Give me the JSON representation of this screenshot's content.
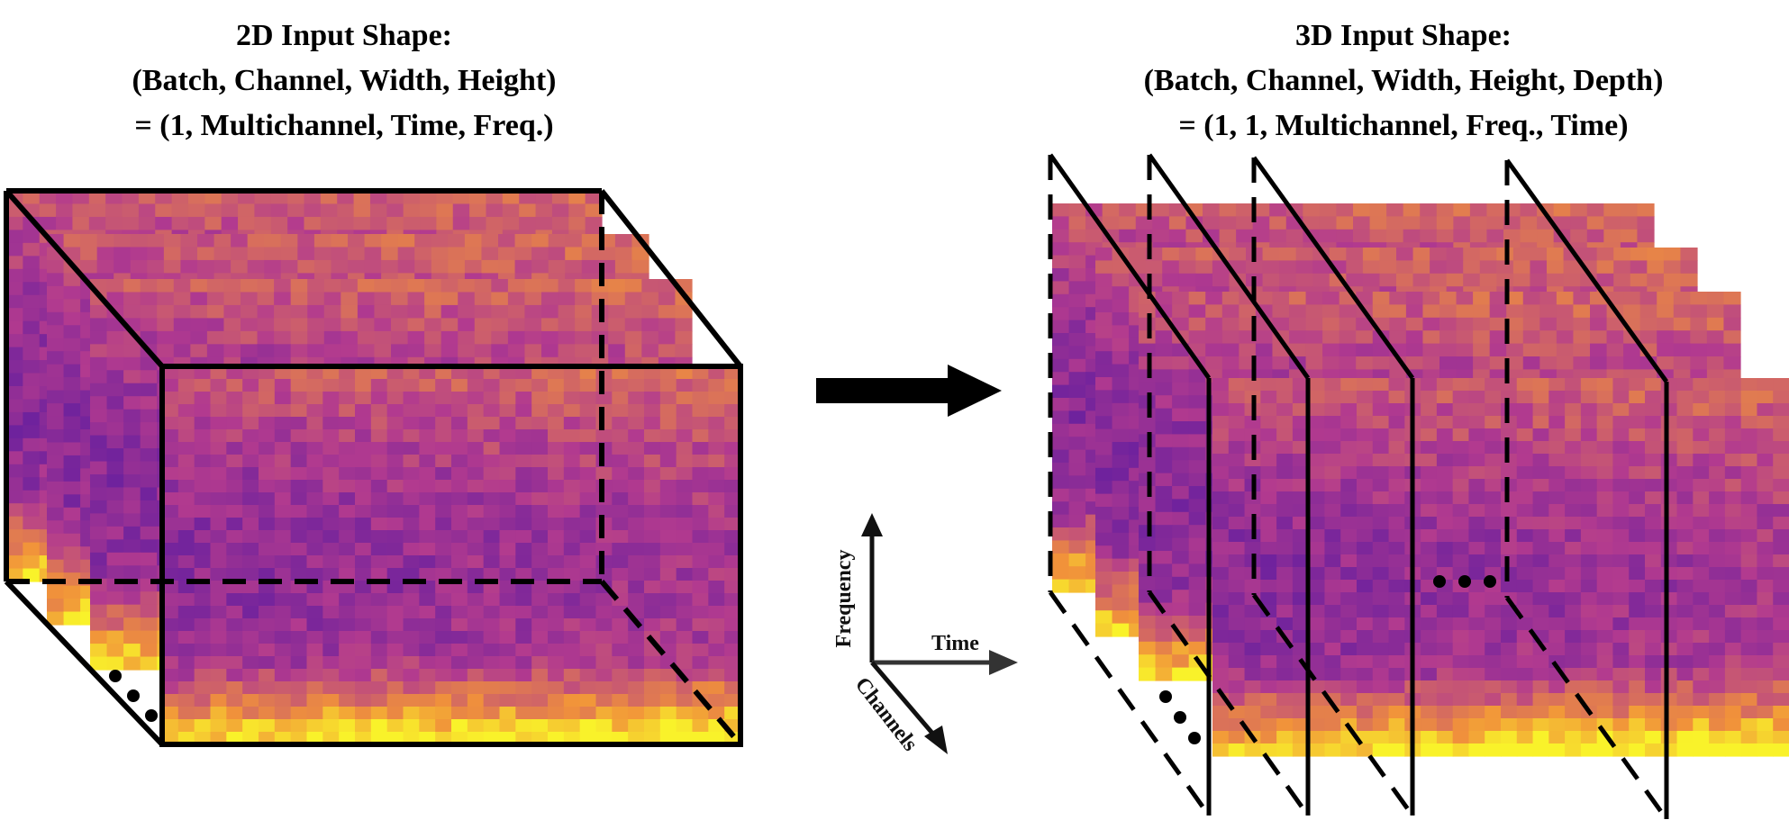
{
  "left_panel": {
    "title_lines": [
      "2D Input Shape:",
      "(Batch, Channel, Width, Height)",
      "= (1, Multichannel, Time, Freq.)"
    ]
  },
  "right_panel": {
    "title_lines": [
      "3D Input Shape:",
      "(Batch, Channel, Width, Height, Depth)",
      "= (1, 1, Multichannel, Freq., Time)"
    ]
  },
  "axes": {
    "frequency_label": "Frequency",
    "time_label": "Time",
    "channels_label": "Channels"
  },
  "colors": {
    "spectrogram_low": "#3a0fa8",
    "spectrogram_mid": "#b23a8f",
    "spectrogram_high": "#f1923a",
    "spectrogram_peak": "#f9f22a",
    "outline": "#000000",
    "axis_arrow": "#333333"
  }
}
